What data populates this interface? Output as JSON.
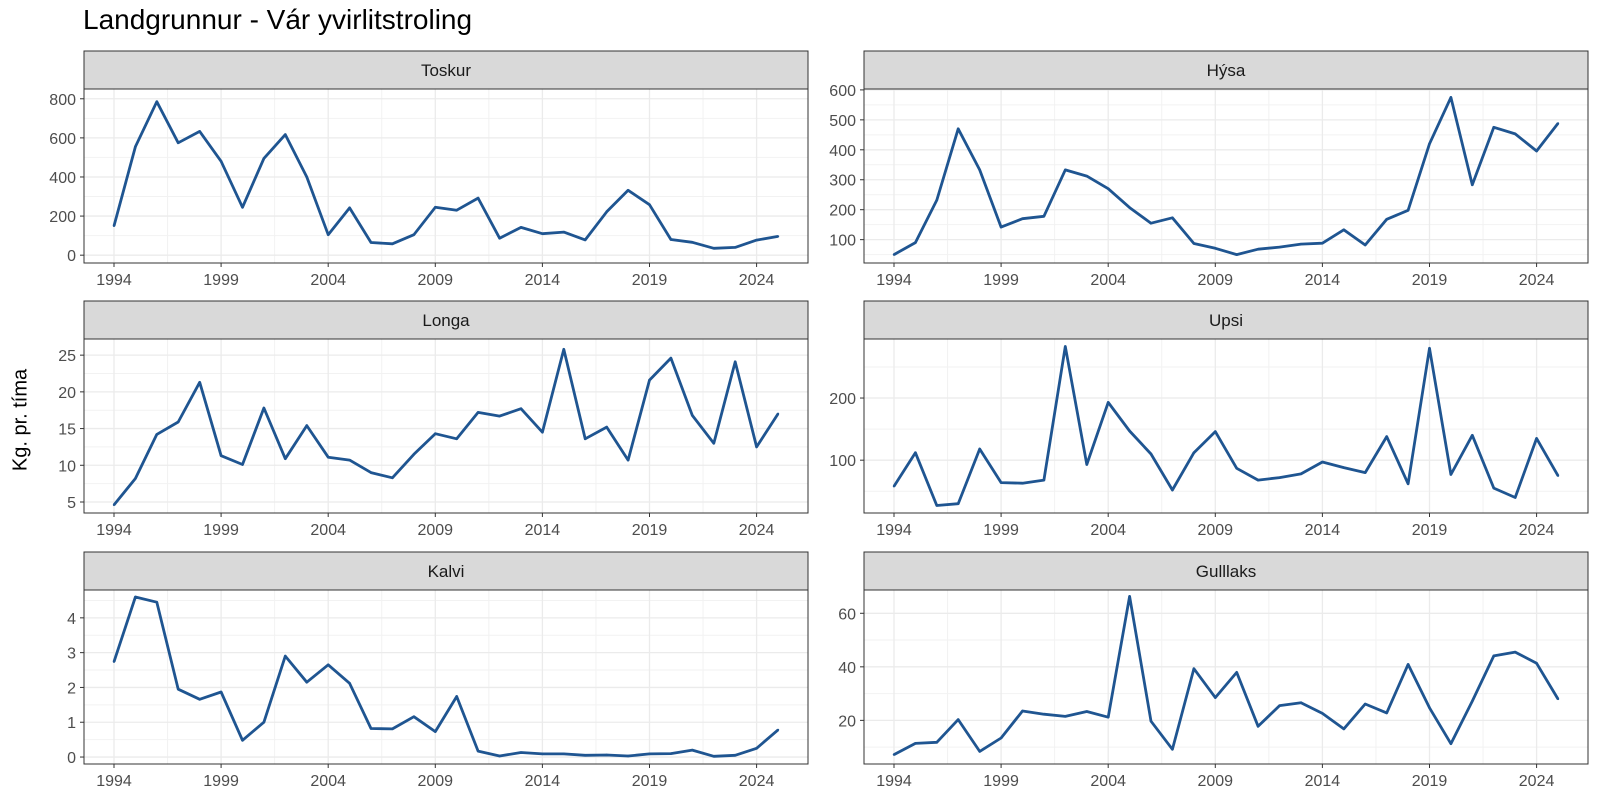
{
  "title": "Landgrunnur - Vár yvirlitstroling",
  "ylabel": "Kg. pr. tíma",
  "line_color": "#1f5591",
  "chart_data": [
    {
      "type": "line",
      "title": "Toskur",
      "x": [
        1994,
        1995,
        1996,
        1997,
        1998,
        1999,
        2000,
        2001,
        2002,
        2003,
        2004,
        2005,
        2006,
        2007,
        2008,
        2009,
        2010,
        2011,
        2012,
        2013,
        2014,
        2015,
        2016,
        2017,
        2018,
        2019,
        2020,
        2021,
        2022,
        2023,
        2024,
        2025
      ],
      "series": [
        {
          "values": [
            150,
            555,
            785,
            575,
            633,
            480,
            245,
            495,
            617,
            400,
            105,
            242,
            65,
            58,
            105,
            245,
            230,
            292,
            87,
            142,
            110,
            118,
            78,
            222,
            332,
            258,
            80,
            66,
            35,
            40,
            77,
            96
          ]
        }
      ],
      "yticks": [
        0,
        200,
        400,
        600,
        800
      ],
      "ylim": [
        -40,
        850
      ],
      "xticks": [
        1994,
        1999,
        2004,
        2009,
        2014,
        2019,
        2024
      ],
      "xlim": [
        1992.6,
        2026.4
      ]
    },
    {
      "type": "line",
      "title": "Hýsa",
      "x": [
        1994,
        1995,
        1996,
        1997,
        1998,
        1999,
        2000,
        2001,
        2002,
        2003,
        2004,
        2005,
        2006,
        2007,
        2008,
        2009,
        2010,
        2011,
        2012,
        2013,
        2014,
        2015,
        2016,
        2017,
        2018,
        2019,
        2020,
        2021,
        2022,
        2023,
        2024,
        2025
      ],
      "series": [
        {
          "values": [
            50,
            90,
            232,
            470,
            333,
            142,
            170,
            178,
            333,
            312,
            270,
            207,
            155,
            173,
            87,
            71,
            50,
            68,
            75,
            85,
            88,
            133,
            82,
            168,
            198,
            420,
            575,
            283,
            475,
            453,
            396,
            488
          ]
        }
      ],
      "yticks": [
        100,
        200,
        300,
        400,
        500,
        600
      ],
      "ylim": [
        22,
        603
      ],
      "xticks": [
        1994,
        1999,
        2004,
        2009,
        2014,
        2019,
        2024
      ],
      "xlim": [
        1992.6,
        2026.4
      ]
    },
    {
      "type": "line",
      "title": "Longa",
      "x": [
        1994,
        1995,
        1996,
        1997,
        1998,
        1999,
        2000,
        2001,
        2002,
        2003,
        2004,
        2005,
        2006,
        2007,
        2008,
        2009,
        2010,
        2011,
        2012,
        2013,
        2014,
        2015,
        2016,
        2017,
        2018,
        2019,
        2020,
        2021,
        2022,
        2023,
        2024,
        2025
      ],
      "series": [
        {
          "values": [
            4.6,
            8.2,
            14.2,
            15.9,
            21.3,
            11.3,
            10.1,
            17.8,
            10.9,
            15.4,
            11.1,
            10.7,
            9.0,
            8.3,
            11.5,
            14.3,
            13.6,
            17.2,
            16.7,
            17.7,
            14.5,
            25.8,
            13.6,
            15.2,
            10.7,
            21.6,
            24.6,
            16.8,
            13.0,
            24.1,
            12.5,
            17.0
          ]
        }
      ],
      "yticks": [
        5,
        10,
        15,
        20,
        25
      ],
      "ylim": [
        3.5,
        27.2
      ],
      "xticks": [
        1994,
        1999,
        2004,
        2009,
        2014,
        2019,
        2024
      ],
      "xlim": [
        1992.6,
        2026.4
      ]
    },
    {
      "type": "line",
      "title": "Upsi",
      "x": [
        1994,
        1995,
        1996,
        1997,
        1998,
        1999,
        2000,
        2001,
        2002,
        2003,
        2004,
        2005,
        2006,
        2007,
        2008,
        2009,
        2010,
        2011,
        2012,
        2013,
        2014,
        2015,
        2016,
        2017,
        2018,
        2019,
        2020,
        2021,
        2022,
        2023,
        2024,
        2025
      ],
      "series": [
        {
          "values": [
            58,
            112,
            27,
            30,
            118,
            64,
            63,
            68,
            283,
            93,
            193,
            147,
            110,
            52,
            112,
            146,
            87,
            68,
            72,
            78,
            97,
            88,
            80,
            138,
            62,
            280,
            77,
            140,
            55,
            40,
            135,
            75
          ]
        }
      ],
      "yticks": [
        100,
        200
      ],
      "ylim": [
        15,
        295
      ],
      "xticks": [
        1994,
        1999,
        2004,
        2009,
        2014,
        2019,
        2024
      ],
      "xlim": [
        1992.6,
        2026.4
      ]
    },
    {
      "type": "line",
      "title": "Kalvi",
      "x": [
        1994,
        1995,
        1996,
        1997,
        1998,
        1999,
        2000,
        2001,
        2002,
        2003,
        2004,
        2005,
        2006,
        2007,
        2008,
        2009,
        2010,
        2011,
        2012,
        2013,
        2014,
        2015,
        2016,
        2017,
        2018,
        2019,
        2020,
        2021,
        2022,
        2023,
        2024,
        2025
      ],
      "series": [
        {
          "values": [
            2.74,
            4.6,
            4.45,
            1.95,
            1.66,
            1.87,
            0.48,
            1.0,
            2.9,
            2.15,
            2.65,
            2.12,
            0.82,
            0.81,
            1.16,
            0.73,
            1.74,
            0.17,
            0.03,
            0.13,
            0.09,
            0.09,
            0.05,
            0.06,
            0.03,
            0.09,
            0.1,
            0.2,
            0.02,
            0.05,
            0.25,
            0.78
          ]
        }
      ],
      "yticks": [
        0,
        1,
        2,
        3,
        4
      ],
      "ylim": [
        -0.2,
        4.8
      ],
      "xticks": [
        1994,
        1999,
        2004,
        2009,
        2014,
        2019,
        2024
      ],
      "xlim": [
        1992.6,
        2026.4
      ]
    },
    {
      "type": "line",
      "title": "Gulllaks",
      "x": [
        1994,
        1995,
        1996,
        1997,
        1998,
        1999,
        2000,
        2001,
        2002,
        2003,
        2004,
        2005,
        2006,
        2007,
        2008,
        2009,
        2010,
        2011,
        2012,
        2013,
        2014,
        2015,
        2016,
        2017,
        2018,
        2019,
        2020,
        2021,
        2022,
        2023,
        2024,
        2025
      ],
      "series": [
        {
          "values": [
            7.2,
            11.4,
            11.8,
            20.3,
            8.4,
            13.4,
            23.5,
            22.3,
            21.5,
            23.3,
            21.2,
            66.3,
            19.7,
            9.2,
            39.3,
            28.5,
            37.9,
            17.8,
            25.5,
            26.6,
            22.6,
            16.8,
            26.1,
            22.8,
            40.9,
            24.7,
            11.3,
            27.2,
            44.1,
            45.5,
            41.3,
            28.0
          ]
        }
      ],
      "yticks": [
        20,
        40,
        60
      ],
      "ylim": [
        3.7,
        68.7
      ],
      "xticks": [
        1994,
        1999,
        2004,
        2009,
        2014,
        2019,
        2024
      ],
      "xlim": [
        1992.6,
        2026.4
      ]
    }
  ]
}
